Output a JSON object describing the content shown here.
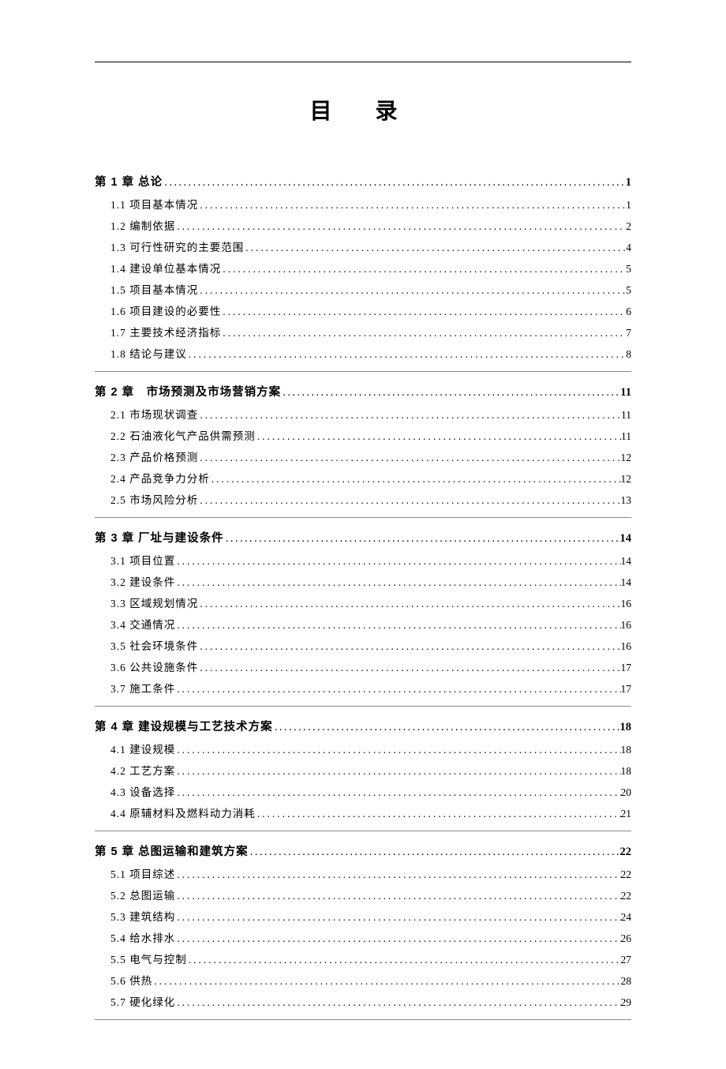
{
  "page_title": "目 录",
  "text_color": "#000000",
  "background_color": "#ffffff",
  "divider_color": "#888888",
  "fonts": {
    "title_family": "SimSun",
    "chapter_family": "SimHei",
    "section_family": "SimSun",
    "title_size_pt": 22,
    "chapter_size_pt": 11,
    "section_size_pt": 10.5
  },
  "chapters": [
    {
      "label": "第 1 章 总论",
      "page": "1",
      "sections": [
        {
          "label": "1.1 项目基本情况",
          "page": "1"
        },
        {
          "label": "1.2 编制依据",
          "page": "2"
        },
        {
          "label": "1.3 可行性研究的主要范围",
          "page": "4"
        },
        {
          "label": "1.4 建设单位基本情况",
          "page": "5"
        },
        {
          "label": "1.5 项目基本情况",
          "page": "5"
        },
        {
          "label": "1.6 项目建设的必要性",
          "page": "6"
        },
        {
          "label": "1.7 主要技术经济指标",
          "page": "7"
        },
        {
          "label": "1.8 结论与建议",
          "page": "8"
        }
      ]
    },
    {
      "label": "第 2 章　市场预测及市场营销方案",
      "page": "11",
      "sections": [
        {
          "label": "2.1 市场现状调查",
          "page": "11"
        },
        {
          "label": "2.2 石油液化气产品供需预测",
          "page": "11"
        },
        {
          "label": "2.3 产品价格预测",
          "page": "12"
        },
        {
          "label": "2.4 产品竞争力分析",
          "page": "12"
        },
        {
          "label": "2.5 市场风险分析",
          "page": "13"
        }
      ]
    },
    {
      "label": "第 3 章 厂址与建设条件",
      "page": "14",
      "sections": [
        {
          "label": "3.1 项目位置",
          "page": "14"
        },
        {
          "label": "3.2 建设条件",
          "page": "14"
        },
        {
          "label": "3.3 区域规划情况",
          "page": "16"
        },
        {
          "label": "3.4 交通情况",
          "page": "16"
        },
        {
          "label": "3.5 社会环境条件",
          "page": "16"
        },
        {
          "label": "3.6 公共设施条件",
          "page": "17"
        },
        {
          "label": "3.7 施工条件",
          "page": "17"
        }
      ]
    },
    {
      "label": "第 4 章 建设规模与工艺技术方案",
      "page": "18",
      "sections": [
        {
          "label": "4.1 建设规模",
          "page": "18"
        },
        {
          "label": "4.2 工艺方案",
          "page": "18"
        },
        {
          "label": "4.3 设备选择",
          "page": "20"
        },
        {
          "label": "4.4 原辅材料及燃料动力消耗",
          "page": "21"
        }
      ]
    },
    {
      "label": "第 5 章 总图运输和建筑方案",
      "page": "22",
      "sections": [
        {
          "label": "5.1 项目综述",
          "page": "22"
        },
        {
          "label": "5.2 总图运输",
          "page": "22"
        },
        {
          "label": "5.3 建筑结构",
          "page": "24"
        },
        {
          "label": "5.4 给水排水",
          "page": "26"
        },
        {
          "label": "5.5 电气与控制",
          "page": "27"
        },
        {
          "label": "5.6 供热",
          "page": "28"
        },
        {
          "label": "5.7 硬化绿化",
          "page": "29"
        }
      ]
    }
  ]
}
